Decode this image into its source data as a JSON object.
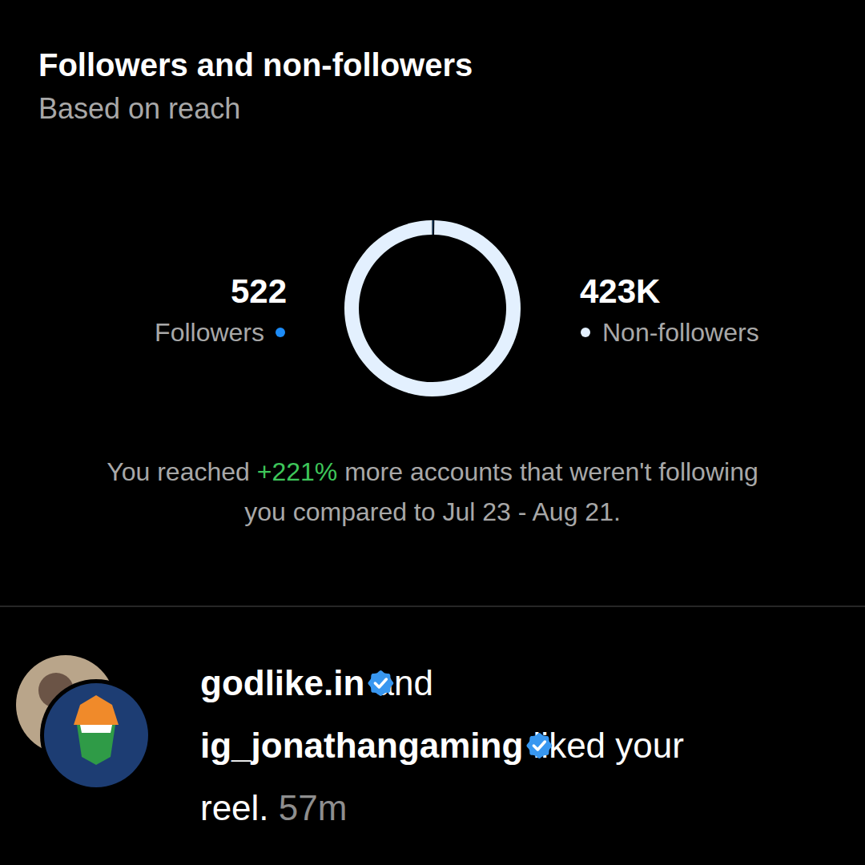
{
  "chart_data": {
    "type": "pie",
    "title": "Followers and non-followers",
    "subtitle": "Based on reach",
    "categories": [
      "Followers",
      "Non-followers"
    ],
    "values": [
      522,
      423000
    ],
    "value_labels": [
      "522",
      "423K"
    ],
    "colors": [
      "#1d8cf8",
      "#e3f0fe"
    ],
    "annotation": {
      "lines": [
        [
          {
            "text": "You reached "
          },
          {
            "text": "+221%",
            "color": "#3ec65a"
          },
          {
            "text": " more accounts that weren't following"
          }
        ],
        [
          {
            "text": "you compared to Jul 23 - Aug 21."
          }
        ]
      ]
    }
  },
  "notification": {
    "lines": [
      [
        {
          "text": "godlike.in",
          "kind": "user"
        },
        {
          "text": " and",
          "kind": "text"
        }
      ],
      [
        {
          "text": "ig_jonathangaming",
          "kind": "user"
        },
        {
          "text": " liked your",
          "kind": "text"
        }
      ],
      [
        {
          "text": "reel.",
          "kind": "text"
        },
        {
          "text": " 57m",
          "kind": "time"
        }
      ]
    ]
  }
}
